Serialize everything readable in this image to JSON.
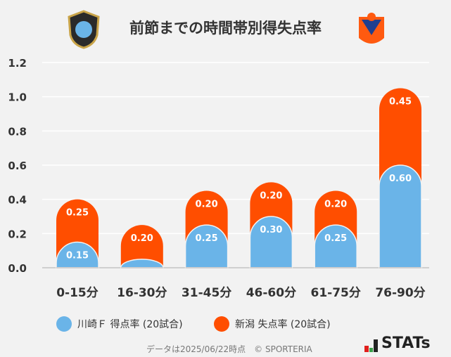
{
  "title": "前節までの時間帯別得失点率",
  "chart_data": {
    "type": "bar",
    "stacked": true,
    "categories": [
      "0-15分",
      "16-30分",
      "31-45分",
      "46-60分",
      "61-75分",
      "76-90分"
    ],
    "series": [
      {
        "name": "川崎Ｆ 得点率 (20試合)",
        "color": "#6ab4e8",
        "values": [
          0.15,
          0.05,
          0.25,
          0.3,
          0.25,
          0.6
        ],
        "labels": [
          "0.15",
          "",
          "0.25",
          "0.30",
          "0.25",
          "0.60"
        ]
      },
      {
        "name": "新潟 失点率 (20試合)",
        "color": "#ff4e00",
        "values": [
          0.25,
          0.2,
          0.2,
          0.2,
          0.2,
          0.45
        ],
        "labels": [
          "0.25",
          "0.20",
          "0.20",
          "0.20",
          "0.20",
          "0.45"
        ]
      }
    ],
    "ylim": [
      0,
      1.2
    ],
    "yticks": [
      "0.0",
      "0.2",
      "0.4",
      "0.6",
      "0.8",
      "1.0",
      "1.2"
    ],
    "grid": true,
    "legend": "bottom"
  },
  "footer": "データは2025/06/22時点　© SPORTERIA",
  "brand": "STATs"
}
